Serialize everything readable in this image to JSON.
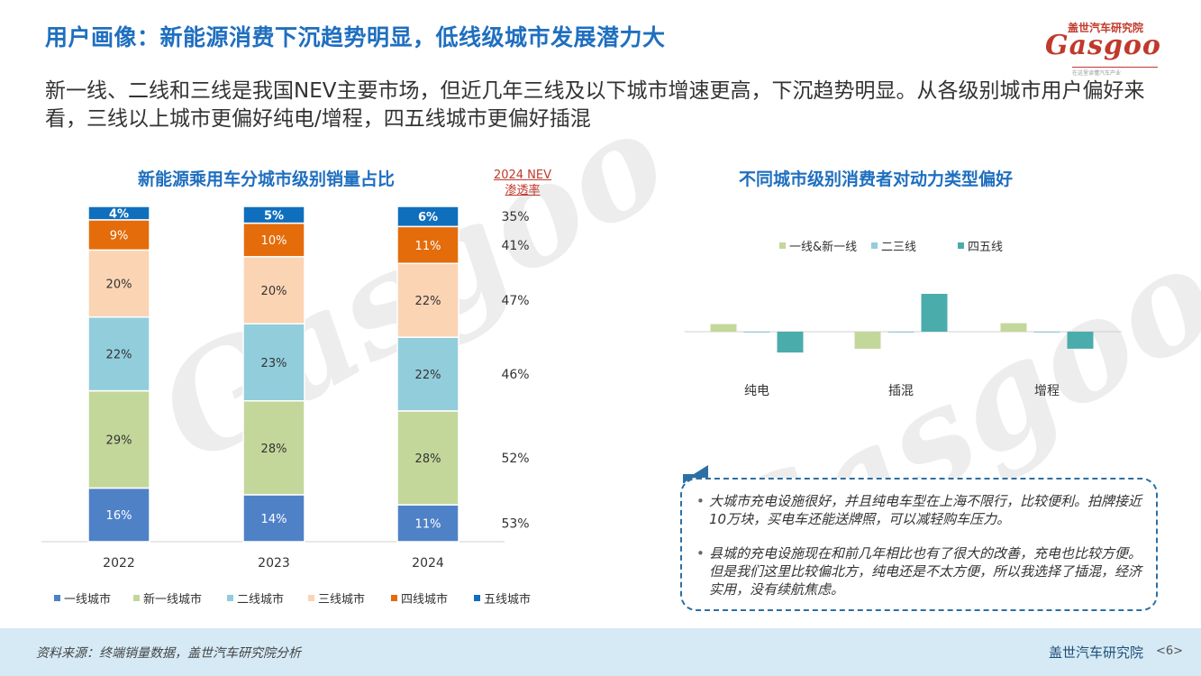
{
  "header": {
    "title": "用户画像：新能源消费下沉趋势明显，低线级城市发展潜力大",
    "logo_cn": "盖世汽车研究院",
    "logo_en": "Gasgoo",
    "logo_tagline": "在这里读懂汽车产业"
  },
  "intro": "新一线、二线和三线是我国NEV主要市场，但近几年三线及以下城市增速更高，下沉趋势明显。从各级别城市用户偏好来看，三线以上城市更偏好纯电/增程，四五线城市更偏好插混",
  "nev_header": [
    "2024 NEV",
    "渗透率"
  ],
  "chart_data": [
    {
      "type": "bar",
      "stacked": true,
      "title": "新能源乘用车分城市级别销量占比",
      "categories": [
        "2022",
        "2023",
        "2024"
      ],
      "series": [
        {
          "name": "一线城市",
          "color": "#4f81c7",
          "values": [
            16,
            14,
            11
          ]
        },
        {
          "name": "新一线城市",
          "color": "#c4d79b",
          "values": [
            29,
            28,
            28
          ]
        },
        {
          "name": "二线城市",
          "color": "#92cddc",
          "values": [
            22,
            23,
            22
          ]
        },
        {
          "name": "三线城市",
          "color": "#fbd4b4",
          "values": [
            20,
            20,
            22
          ]
        },
        {
          "name": "四线城市",
          "color": "#e46c0a",
          "values": [
            9,
            10,
            11
          ]
        },
        {
          "name": "五线城市",
          "color": "#0f6fbd",
          "values": [
            4,
            5,
            6
          ]
        }
      ],
      "nev_penetration_2024": [
        "35%",
        "41%",
        "47%",
        "46%",
        "52%",
        "53%"
      ],
      "legend": "bottom"
    },
    {
      "type": "bar",
      "title": "不同城市级别消费者对动力类型偏好",
      "categories": [
        "纯电",
        "插混",
        "增程"
      ],
      "series": [
        {
          "name": "一线&新一线",
          "color": "#c4d79b",
          "values": [
            0.8,
            -1.8,
            0.9
          ]
        },
        {
          "name": "二三线",
          "color": "#92cddc",
          "values": [
            -0.1,
            -0.1,
            -0.1
          ]
        },
        {
          "name": "四五线",
          "color": "#4bacac",
          "values": [
            -2.2,
            4.0,
            -1.8
          ]
        }
      ],
      "legend": "top"
    }
  ],
  "notes": [
    "大城市充电设施很好，并且纯电车型在上海不限行，比较便利。拍牌接近10万块，买电车还能送牌照，可以减轻购车压力。",
    "县城的充电设施现在和前几年相比也有了很大的改善，充电也比较方便。但是我们这里比较偏北方，纯电还是不太方便，所以我选择了插混，经济实用，没有续航焦虑。"
  ],
  "footer": {
    "source": "资料来源：终端销量数据，盖世汽车研究院分析",
    "brand": "盖世汽车研究院",
    "page": "<6>"
  }
}
